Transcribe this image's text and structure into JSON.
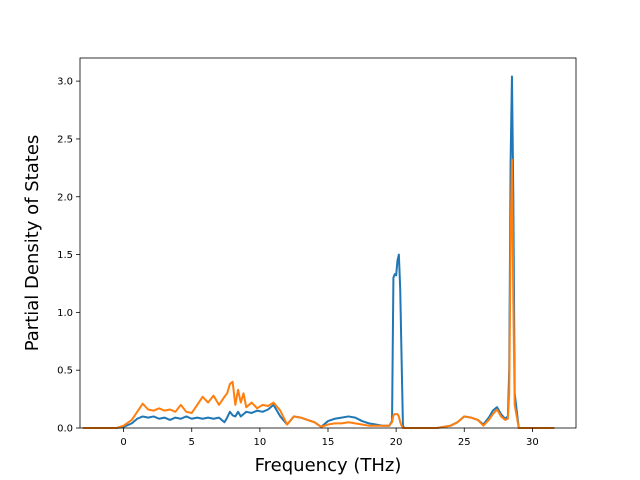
{
  "chart_data": {
    "type": "line",
    "title": "",
    "xlabel": "Frequency (THz)",
    "ylabel": "Partial Density of States",
    "xlim": [
      -3.2,
      33.2
    ],
    "ylim": [
      0,
      3.2
    ],
    "xticks": [
      0,
      5,
      10,
      15,
      20,
      25,
      30
    ],
    "xtick_labels": [
      "0",
      "5",
      "10",
      "15",
      "20",
      "25",
      "30"
    ],
    "yticks": [
      0.0,
      0.5,
      1.0,
      1.5,
      2.0,
      2.5,
      3.0
    ],
    "ytick_labels": [
      "0.0",
      "0.5",
      "1.0",
      "1.5",
      "2.0",
      "2.5",
      "3.0"
    ],
    "grid": false,
    "legend": null,
    "series": [
      {
        "color": "#1f77b4",
        "x": [
          -3.0,
          -0.5,
          0.0,
          0.6,
          1.0,
          1.4,
          1.8,
          2.2,
          2.6,
          3.0,
          3.4,
          3.8,
          4.2,
          4.6,
          5.0,
          5.4,
          5.8,
          6.2,
          6.6,
          7.0,
          7.4,
          7.6,
          7.8,
          8.0,
          8.2,
          8.4,
          8.6,
          8.8,
          9.0,
          9.4,
          9.8,
          10.2,
          10.6,
          11.0,
          11.5,
          12.0,
          12.5,
          13.0,
          13.5,
          14.0,
          14.5,
          15.0,
          15.5,
          16.0,
          16.5,
          17.0,
          17.5,
          18.0,
          18.5,
          19.0,
          19.5,
          19.7,
          19.8,
          19.9,
          20.0,
          20.1,
          20.2,
          20.3,
          20.4,
          20.5,
          20.6,
          20.7,
          21.0,
          22.0,
          23.0,
          24.0,
          24.5,
          25.0,
          25.5,
          26.0,
          26.4,
          26.8,
          27.1,
          27.4,
          27.7,
          28.0,
          28.2,
          28.3,
          28.4,
          28.5,
          28.6,
          28.7,
          29.0,
          30.0,
          31.0,
          31.6
        ],
        "y": [
          0.0,
          0.0,
          0.01,
          0.04,
          0.08,
          0.1,
          0.09,
          0.1,
          0.08,
          0.09,
          0.07,
          0.09,
          0.08,
          0.1,
          0.08,
          0.09,
          0.08,
          0.09,
          0.08,
          0.09,
          0.05,
          0.09,
          0.14,
          0.11,
          0.1,
          0.14,
          0.1,
          0.12,
          0.14,
          0.13,
          0.15,
          0.14,
          0.16,
          0.2,
          0.1,
          0.03,
          0.1,
          0.09,
          0.07,
          0.05,
          0.01,
          0.06,
          0.08,
          0.09,
          0.1,
          0.09,
          0.06,
          0.04,
          0.03,
          0.02,
          0.02,
          0.06,
          1.3,
          1.33,
          1.32,
          1.45,
          1.5,
          1.2,
          0.6,
          0.02,
          0.0,
          0.0,
          0.0,
          0.0,
          0.0,
          0.02,
          0.05,
          0.1,
          0.09,
          0.07,
          0.03,
          0.09,
          0.15,
          0.18,
          0.12,
          0.08,
          0.1,
          0.5,
          2.3,
          3.04,
          2.0,
          0.3,
          0.0,
          0.0,
          0.0,
          0.0
        ]
      },
      {
        "color": "#ff7f0e",
        "x": [
          -3.0,
          -0.5,
          0.0,
          0.6,
          1.0,
          1.4,
          1.8,
          2.2,
          2.6,
          3.0,
          3.4,
          3.8,
          4.2,
          4.6,
          5.0,
          5.4,
          5.8,
          6.2,
          6.6,
          7.0,
          7.4,
          7.6,
          7.8,
          8.0,
          8.2,
          8.4,
          8.6,
          8.8,
          9.0,
          9.4,
          9.8,
          10.2,
          10.6,
          11.0,
          11.5,
          12.0,
          12.5,
          13.0,
          13.5,
          14.0,
          14.5,
          15.0,
          15.5,
          16.0,
          16.5,
          17.0,
          17.5,
          18.0,
          18.5,
          19.0,
          19.5,
          19.7,
          19.8,
          19.9,
          20.0,
          20.1,
          20.2,
          20.3,
          20.4,
          20.5,
          20.6,
          20.7,
          21.0,
          22.0,
          23.0,
          24.0,
          24.5,
          25.0,
          25.5,
          26.0,
          26.4,
          26.8,
          27.1,
          27.4,
          27.7,
          28.0,
          28.2,
          28.3,
          28.4,
          28.5,
          28.6,
          28.7,
          29.0,
          30.0,
          31.0,
          31.6
        ],
        "y": [
          0.0,
          0.0,
          0.02,
          0.07,
          0.14,
          0.21,
          0.16,
          0.15,
          0.17,
          0.15,
          0.16,
          0.14,
          0.2,
          0.14,
          0.13,
          0.2,
          0.27,
          0.22,
          0.28,
          0.2,
          0.27,
          0.3,
          0.38,
          0.4,
          0.2,
          0.33,
          0.22,
          0.3,
          0.18,
          0.22,
          0.17,
          0.2,
          0.19,
          0.22,
          0.15,
          0.03,
          0.1,
          0.09,
          0.07,
          0.05,
          0.01,
          0.03,
          0.04,
          0.04,
          0.05,
          0.04,
          0.03,
          0.02,
          0.02,
          0.02,
          0.02,
          0.05,
          0.11,
          0.12,
          0.12,
          0.12,
          0.1,
          0.05,
          0.02,
          0.0,
          0.0,
          0.0,
          0.0,
          0.0,
          0.0,
          0.02,
          0.05,
          0.1,
          0.09,
          0.07,
          0.02,
          0.07,
          0.12,
          0.16,
          0.1,
          0.07,
          0.08,
          0.3,
          1.6,
          2.32,
          1.1,
          0.2,
          0.0,
          0.0,
          0.0,
          0.0
        ]
      }
    ]
  }
}
